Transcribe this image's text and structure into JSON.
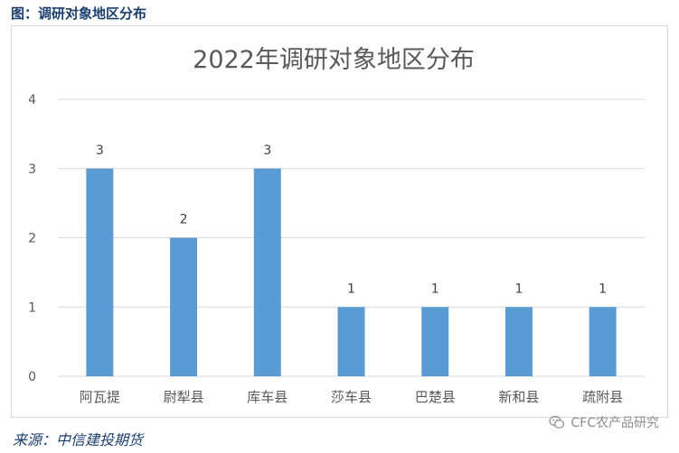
{
  "figure_caption": "图：调研对象地区分布",
  "source": "来源：中信建投期货",
  "watermark": "CFC农产品研究",
  "icons": {
    "watermark_icon": "wechat-icon"
  },
  "colors": {
    "bar": "#5b9bd5",
    "caption": "#1c3f6e",
    "grid": "#d9d9d9"
  },
  "chart_data": {
    "type": "bar",
    "title": "2022年调研对象地区分布",
    "categories": [
      "阿瓦提",
      "尉犁县",
      "库车县",
      "莎车县",
      "巴楚县",
      "新和县",
      "疏附县"
    ],
    "values": [
      3,
      2,
      3,
      1,
      1,
      1,
      1
    ],
    "data_labels": [
      "3",
      "2",
      "3",
      "1",
      "1",
      "1",
      "1"
    ],
    "y_ticks": [
      "0",
      "1",
      "2",
      "3",
      "4"
    ],
    "ylim": [
      0,
      4
    ],
    "xlabel": "",
    "ylabel": "",
    "grid": true,
    "legend": "none"
  }
}
